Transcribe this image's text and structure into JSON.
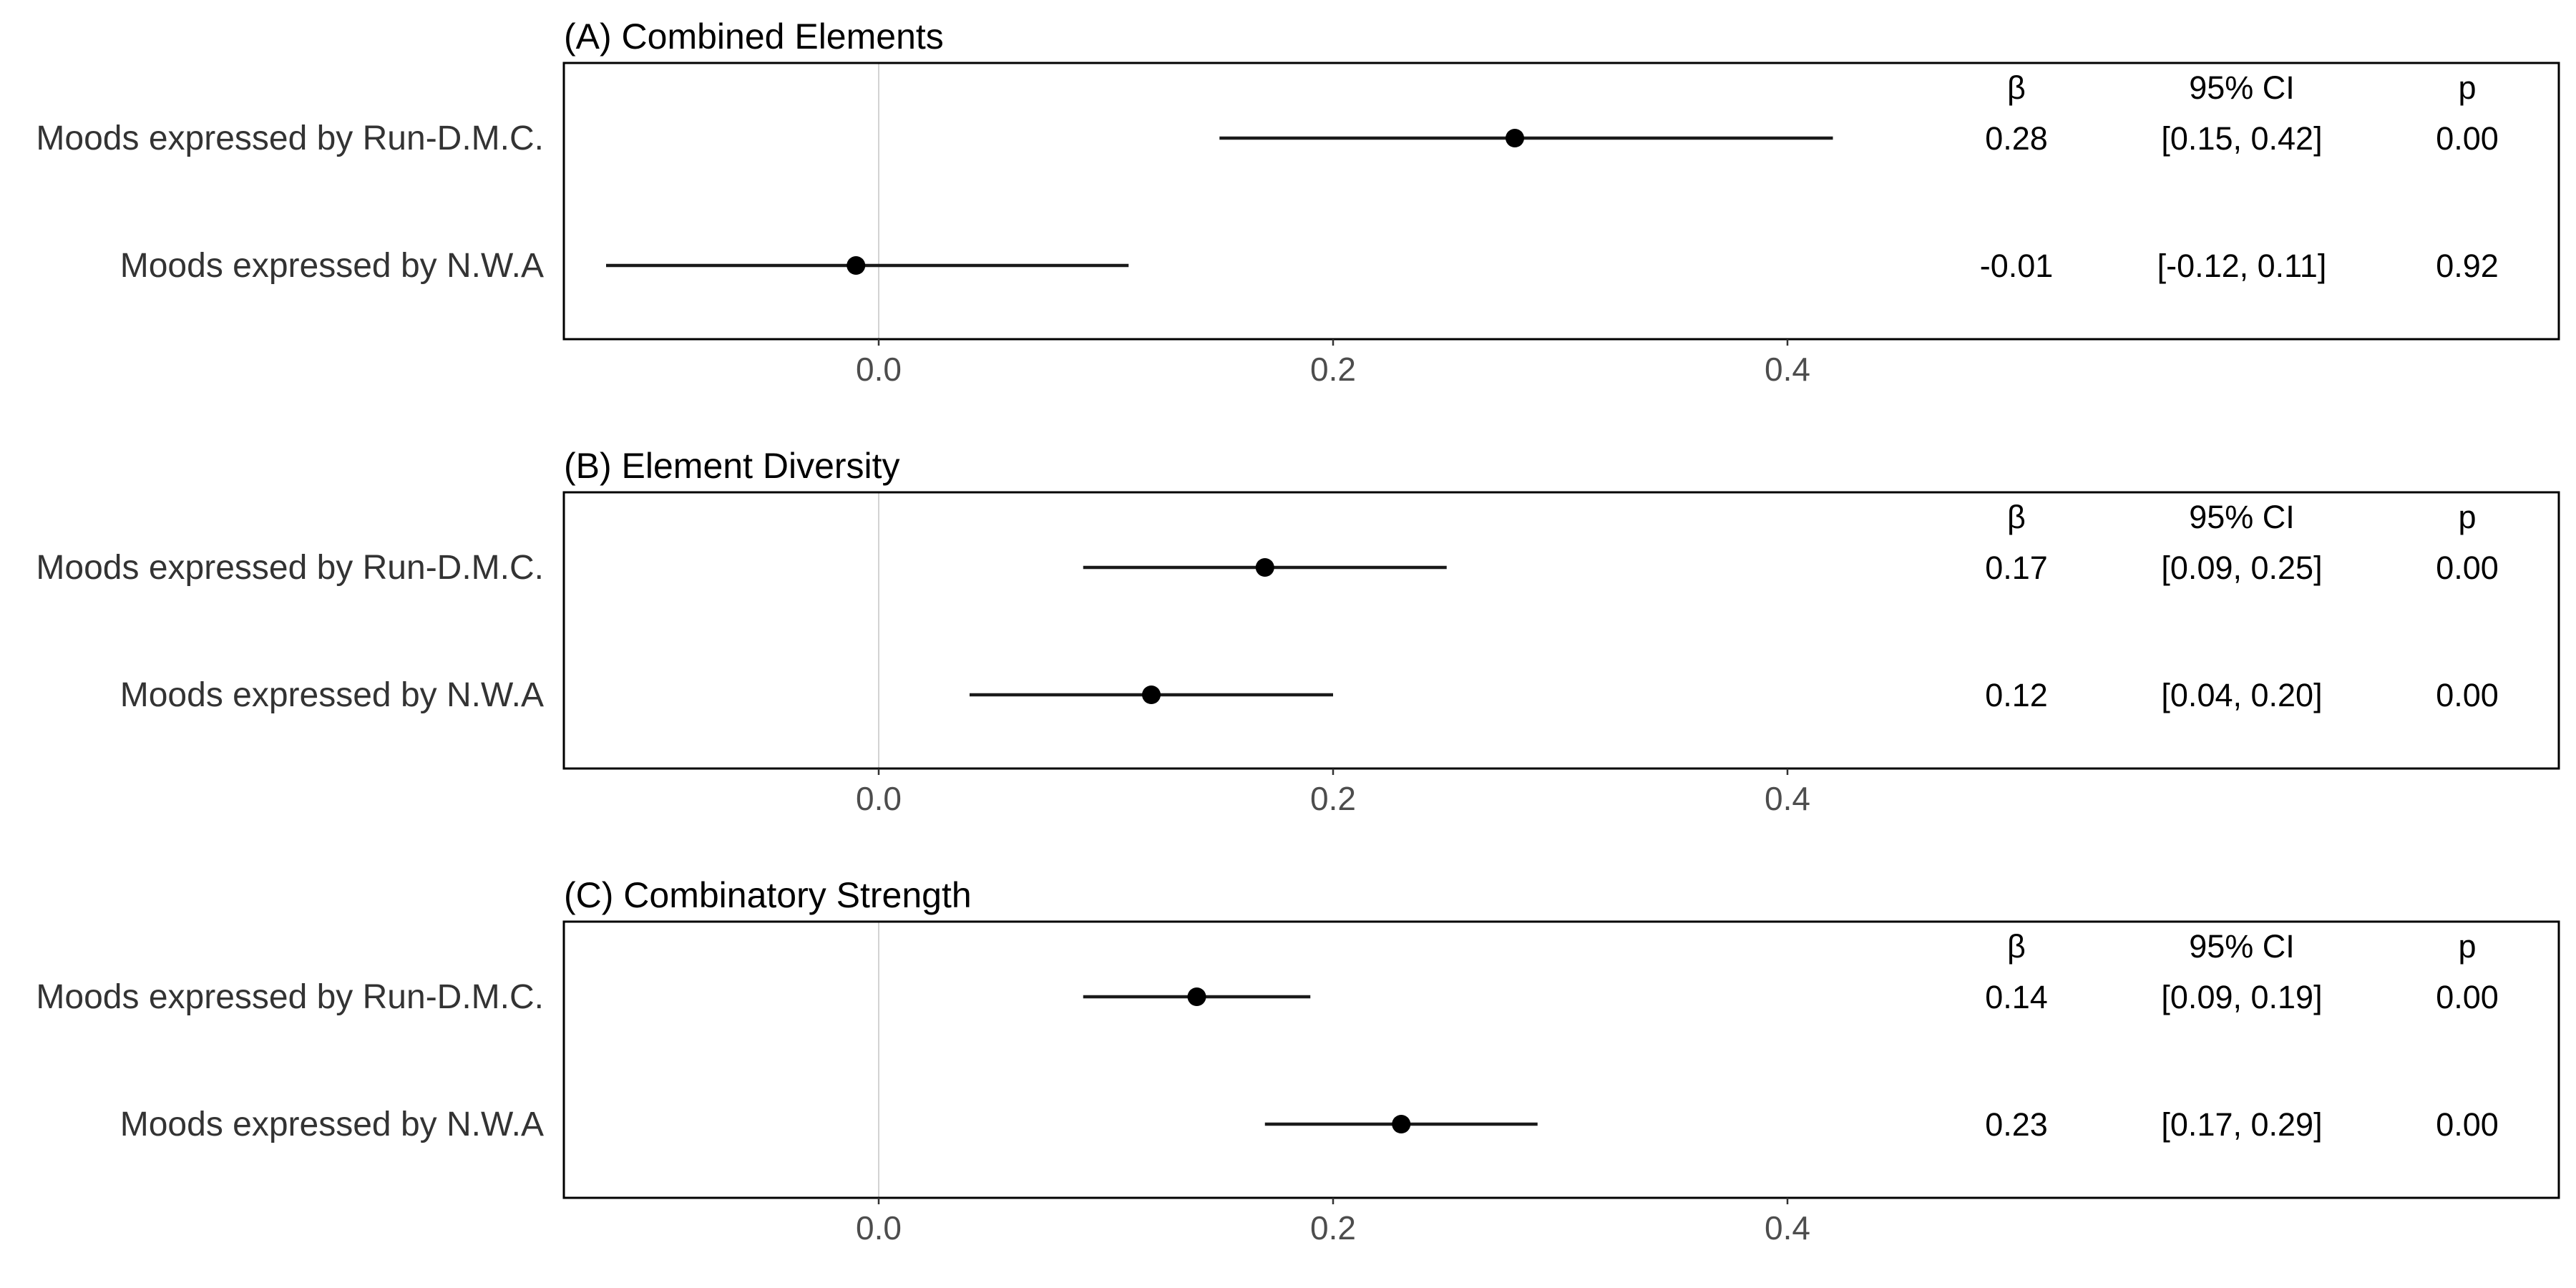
{
  "chart_data": [
    {
      "type": "forest",
      "title": "(A) Combined Elements",
      "xlim": [
        -0.14,
        0.74
      ],
      "x_ticks": [
        0.0,
        0.2,
        0.4
      ],
      "x_tick_labels": [
        "0.0",
        "0.2",
        "0.4"
      ],
      "reference_line": 0,
      "grid": false,
      "table_headers": [
        "β",
        "95% CI",
        "p"
      ],
      "rows": [
        {
          "label": "Moods expressed by Run-D.M.C.",
          "estimate": 0.28,
          "ci_low": 0.15,
          "ci_high": 0.42,
          "beta_text": "0.28",
          "ci_text": "[0.15, 0.42]",
          "p_text": "0.00"
        },
        {
          "label": "Moods expressed by N.W.A",
          "estimate": -0.01,
          "ci_low": -0.12,
          "ci_high": 0.11,
          "beta_text": "-0.01",
          "ci_text": "[-0.12, 0.11]",
          "p_text": "0.92"
        }
      ]
    },
    {
      "type": "forest",
      "title": "(B) Element Diversity",
      "xlim": [
        -0.14,
        0.74
      ],
      "x_ticks": [
        0.0,
        0.2,
        0.4
      ],
      "x_tick_labels": [
        "0.0",
        "0.2",
        "0.4"
      ],
      "reference_line": 0,
      "grid": false,
      "table_headers": [
        "β",
        "95% CI",
        "p"
      ],
      "rows": [
        {
          "label": "Moods expressed by Run-D.M.C.",
          "estimate": 0.17,
          "ci_low": 0.09,
          "ci_high": 0.25,
          "beta_text": "0.17",
          "ci_text": "[0.09, 0.25]",
          "p_text": "0.00"
        },
        {
          "label": "Moods expressed by N.W.A",
          "estimate": 0.12,
          "ci_low": 0.04,
          "ci_high": 0.2,
          "beta_text": "0.12",
          "ci_text": "[0.04, 0.20]",
          "p_text": "0.00"
        }
      ]
    },
    {
      "type": "forest",
      "title": "(C) Combinatory Strength",
      "xlim": [
        -0.14,
        0.74
      ],
      "x_ticks": [
        0.0,
        0.2,
        0.4
      ],
      "x_tick_labels": [
        "0.0",
        "0.2",
        "0.4"
      ],
      "reference_line": 0,
      "grid": false,
      "table_headers": [
        "β",
        "95% CI",
        "p"
      ],
      "rows": [
        {
          "label": "Moods expressed by Run-D.M.C.",
          "estimate": 0.14,
          "ci_low": 0.09,
          "ci_high": 0.19,
          "beta_text": "0.14",
          "ci_text": "[0.09, 0.19]",
          "p_text": "0.00"
        },
        {
          "label": "Moods expressed by N.W.A",
          "estimate": 0.23,
          "ci_low": 0.17,
          "ci_high": 0.29,
          "beta_text": "0.23",
          "ci_text": "[0.17, 0.29]",
          "p_text": "0.00"
        }
      ]
    }
  ],
  "colors": {
    "point": "#000000",
    "whisker": "#1a1a1a",
    "panel_border": "#000000",
    "reference_line": "#d3d3d3",
    "label_text": "#333333",
    "tick_text": "#4d4d4d"
  }
}
